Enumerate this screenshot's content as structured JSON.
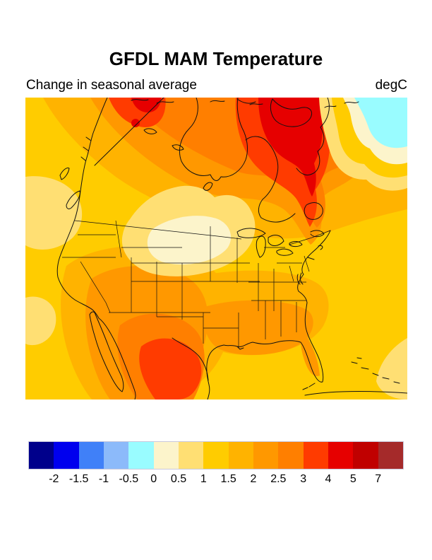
{
  "header": {
    "title": "GFDL MAM Temperature",
    "subtitle": "Change in seasonal average",
    "units_label": "degC"
  },
  "chart_data": {
    "type": "heatmap",
    "subtype": "filled-contour-map",
    "region": "North America",
    "title": "GFDL MAM Temperature",
    "subtitle": "Change in seasonal average",
    "units": "degC",
    "legend_position": "bottom",
    "grid": false,
    "levels": [
      -2,
      -1.5,
      -1,
      -0.5,
      0,
      0.5,
      1,
      1.5,
      2,
      2.5,
      3,
      4,
      5,
      7
    ],
    "tick_labels": [
      "-2",
      "-1.5",
      "-1",
      "-0.5",
      "0",
      "0.5",
      "1",
      "1.5",
      "2",
      "2.5",
      "3",
      "4",
      "5",
      "7"
    ],
    "palette": [
      "#00008B",
      "#0000EE",
      "#4080F8",
      "#8CBAFA",
      "#99FCFF",
      "#FCF4CB",
      "#FFDF73",
      "#FFCC00",
      "#FFB300",
      "#FF9800",
      "#FF7F00",
      "#FF3B00",
      "#E60000",
      "#C00000",
      "#A52A2A"
    ],
    "map_values_degC": {
      "pacific_ocean_west": 1.25,
      "pacific_coast_pale_patch": 0.75,
      "us_northern_plains": 0.75,
      "us_plains_core_montana_wyoming": 0.25,
      "us_southwest": 2.25,
      "northern_mexico_texas_core": 3.5,
      "gulf_coast_states": 2.25,
      "atlantic_ocean_east": 1.25,
      "central_canada": 2.25,
      "hudson_bay": 2.75,
      "northeast_canada_quebec_labrador_core": 4.5,
      "arctic_top_band": 3.5,
      "north_atlantic_corner_cool_patch": -0.25
    }
  }
}
